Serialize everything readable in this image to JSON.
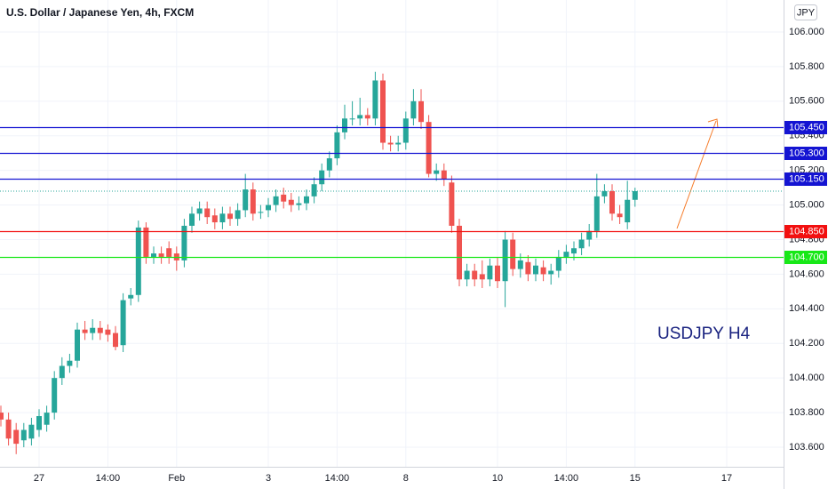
{
  "chart_data": {
    "type": "candlestick",
    "title": "U.S. Dollar / Japanese Yen, 4h, FXCM",
    "currency_button": "JPY",
    "annotation": "USDJPY H4",
    "up_color": "#26a69a",
    "down_color": "#ef5350",
    "grid": true,
    "categories": [
      null,
      null,
      null,
      null,
      null,
      "27",
      null,
      null,
      null,
      null,
      null,
      null,
      null,
      null,
      "14:00",
      null,
      null,
      null,
      null,
      null,
      null,
      null,
      null,
      "Feb",
      null,
      null,
      null,
      null,
      null,
      null,
      null,
      null,
      null,
      null,
      null,
      "3",
      null,
      null,
      null,
      null,
      null,
      null,
      null,
      null,
      "14:00",
      null,
      null,
      null,
      null,
      null,
      null,
      null,
      null,
      "8",
      null,
      null,
      null,
      null,
      null,
      null,
      null,
      null,
      null,
      null,
      null,
      "10",
      null,
      null,
      null,
      null,
      null,
      null,
      null,
      null,
      "14:00",
      null,
      null,
      null,
      null,
      null,
      null,
      null,
      null,
      "15",
      null,
      null,
      null,
      null,
      null,
      null,
      null,
      null,
      null,
      null,
      null,
      "17"
    ],
    "open": [
      103.8,
      103.76,
      103.7,
      103.64,
      103.65,
      103.7,
      103.73,
      103.8,
      104.0,
      104.07,
      104.1,
      104.28,
      104.26,
      104.29,
      104.28,
      104.26,
      104.19,
      104.46,
      104.48,
      104.87,
      104.7,
      104.72,
      104.75,
      104.72,
      104.68,
      104.88,
      104.95,
      104.98,
      104.94,
      104.9,
      104.95,
      104.92,
      104.97,
      105.09,
      104.96,
      104.97,
      105.0,
      105.06,
      105.03,
      105.0,
      105.01,
      105.05,
      105.12,
      105.2,
      105.27,
      105.42,
      105.5,
      105.5,
      105.52,
      105.5,
      105.72,
      105.36,
      105.35,
      105.36,
      105.5,
      105.6,
      105.48,
      105.18,
      105.2,
      105.13,
      104.88,
      104.57,
      104.62,
      104.6,
      104.57,
      104.65,
      104.56,
      104.8,
      104.63,
      104.67,
      104.6,
      104.64,
      104.6,
      104.62,
      104.7,
      104.72,
      104.75,
      104.8,
      104.85,
      105.05,
      105.08,
      104.95,
      104.9,
      105.03,
      null,
      null,
      null,
      null,
      null,
      null,
      null,
      null,
      null,
      null,
      null,
      null
    ],
    "high": [
      103.84,
      103.8,
      103.74,
      103.74,
      103.77,
      103.82,
      103.84,
      104.04,
      104.12,
      104.14,
      104.32,
      104.33,
      104.34,
      104.33,
      104.31,
      104.3,
      104.49,
      104.52,
      104.91,
      104.9,
      104.76,
      104.76,
      104.79,
      104.76,
      104.92,
      104.99,
      105.02,
      105.02,
      104.98,
      104.99,
      104.99,
      105.01,
      105.18,
      105.13,
      105.0,
      105.04,
      105.09,
      105.1,
      105.07,
      105.05,
      105.09,
      105.16,
      105.24,
      105.31,
      105.46,
      105.58,
      105.6,
      105.62,
      105.56,
      105.77,
      105.76,
      105.4,
      105.4,
      105.54,
      105.67,
      105.67,
      105.52,
      105.24,
      105.24,
      105.17,
      104.92,
      104.66,
      104.66,
      104.68,
      104.69,
      104.7,
      104.85,
      104.84,
      104.72,
      104.71,
      104.69,
      104.68,
      104.66,
      104.74,
      104.77,
      104.79,
      104.84,
      104.89,
      105.18,
      105.12,
      105.12,
      105.0,
      105.14,
      105.1,
      null,
      null,
      null,
      null,
      null,
      null,
      null,
      null,
      null,
      null,
      null,
      null
    ],
    "low": [
      103.72,
      103.61,
      103.56,
      103.6,
      103.61,
      103.66,
      103.69,
      103.76,
      103.96,
      104.03,
      104.06,
      104.22,
      104.22,
      104.22,
      104.21,
      104.16,
      104.15,
      104.42,
      104.44,
      104.66,
      104.66,
      104.66,
      104.66,
      104.62,
      104.64,
      104.84,
      104.91,
      104.89,
      104.86,
      104.86,
      104.88,
      104.88,
      104.93,
      104.91,
      104.92,
      104.93,
      104.96,
      104.98,
      104.96,
      104.97,
      104.97,
      105.01,
      105.08,
      105.16,
      105.23,
      105.38,
      105.46,
      105.46,
      105.46,
      105.46,
      105.32,
      105.31,
      105.31,
      105.32,
      105.46,
      105.44,
      105.16,
      105.14,
      105.11,
      104.84,
      104.53,
      104.53,
      104.53,
      104.52,
      104.53,
      104.52,
      104.41,
      104.59,
      104.58,
      104.56,
      104.56,
      104.56,
      104.54,
      104.58,
      104.66,
      104.68,
      104.71,
      104.76,
      104.81,
      105.01,
      104.91,
      104.89,
      104.86,
      104.99,
      null,
      null,
      null,
      null,
      null,
      null,
      null,
      null,
      null,
      null,
      null,
      null
    ],
    "close": [
      103.76,
      103.65,
      103.62,
      103.7,
      103.73,
      103.78,
      103.8,
      104.0,
      104.07,
      104.1,
      104.28,
      104.26,
      104.29,
      104.26,
      104.25,
      104.18,
      104.45,
      104.48,
      104.87,
      104.7,
      104.72,
      104.7,
      104.7,
      104.68,
      104.88,
      104.95,
      104.98,
      104.93,
      104.9,
      104.95,
      104.92,
      104.97,
      105.09,
      104.95,
      104.96,
      105.0,
      105.05,
      105.02,
      105.0,
      105.01,
      105.05,
      105.12,
      105.2,
      105.27,
      105.42,
      105.5,
      105.5,
      105.52,
      105.5,
      105.72,
      105.36,
      105.35,
      105.36,
      105.5,
      105.6,
      105.48,
      105.18,
      105.2,
      105.15,
      104.88,
      104.57,
      104.62,
      104.57,
      104.57,
      104.65,
      104.56,
      104.8,
      104.63,
      104.68,
      104.6,
      104.65,
      104.6,
      104.62,
      104.7,
      104.73,
      104.75,
      104.8,
      104.85,
      105.05,
      105.08,
      104.95,
      104.93,
      105.03,
      105.08,
      null,
      null,
      null,
      null,
      null,
      null,
      null,
      null,
      null,
      null,
      null,
      null
    ],
    "ylim": [
      103.487,
      106.185
    ],
    "yticks": [
      {
        "value": 106,
        "label": "106.000"
      },
      {
        "value": 105.8,
        "label": "105.800"
      },
      {
        "value": 105.6,
        "label": "105.600"
      },
      {
        "value": 105.4,
        "label": "105.400"
      },
      {
        "value": 105.2,
        "label": "105.200"
      },
      {
        "value": 105,
        "label": "105.000"
      },
      {
        "value": 104.8,
        "label": "104.800"
      },
      {
        "value": 104.6,
        "label": "104.600"
      },
      {
        "value": 104.4,
        "label": "104.400"
      },
      {
        "value": 104.2,
        "label": "104.200"
      },
      {
        "value": 104,
        "label": "104.000"
      },
      {
        "value": 103.8,
        "label": "103.800"
      },
      {
        "value": 103.6,
        "label": "103.600"
      }
    ],
    "levels": [
      {
        "value": 105.45,
        "label": "105.450",
        "color": "#1414d2"
      },
      {
        "value": 105.3,
        "label": "105.300",
        "color": "#1414d2"
      },
      {
        "value": 105.15,
        "label": "105.150",
        "color": "#1414d2"
      },
      {
        "value": 104.85,
        "label": "104.850",
        "color": "#f21010"
      },
      {
        "value": 104.7,
        "label": "104.700",
        "color": "#18e818"
      }
    ]
  }
}
